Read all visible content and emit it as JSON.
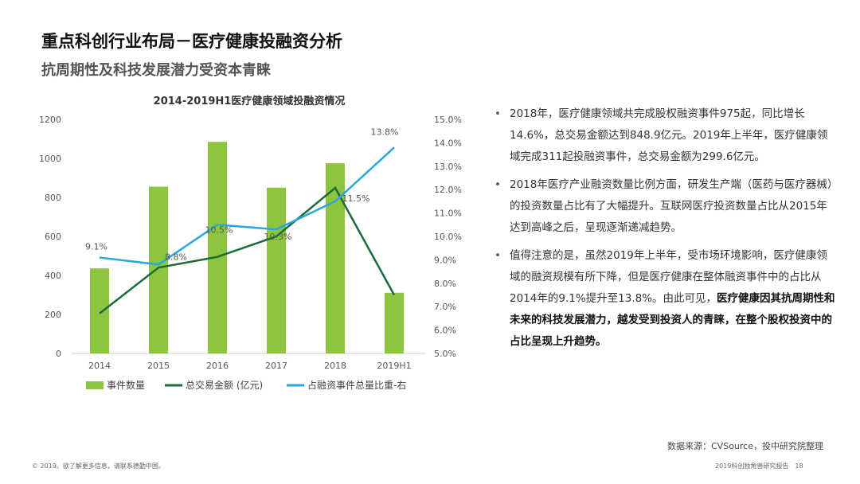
{
  "header": {
    "title": "重点科创行业布局－医疗健康投融资分析",
    "subtitle": "抗周期性及科技发展潜力受资本青睐"
  },
  "chart_data": {
    "type": "bar",
    "title": "2014-2019H1医疗健康领域投融资情况",
    "categories": [
      "2014",
      "2015",
      "2016",
      "2017",
      "2018",
      "2019H1"
    ],
    "ylim_left": [
      0,
      1200
    ],
    "yticks_left": [
      "0",
      "200",
      "400",
      "600",
      "800",
      "1000",
      "1200"
    ],
    "ylim_right": [
      5.0,
      15.0
    ],
    "yticks_right": [
      "5.0%",
      "6.0%",
      "7.0%",
      "8.0%",
      "9.0%",
      "10.0%",
      "11.0%",
      "12.0%",
      "13.0%",
      "14.0%",
      "15.0%"
    ],
    "series": [
      {
        "name": "事件数量",
        "kind": "bar",
        "axis": "left",
        "color": "#8cc63f",
        "values": [
          436,
          855,
          1085,
          850,
          975,
          311
        ]
      },
      {
        "name": "总交易金额 (亿元)",
        "kind": "line",
        "axis": "left",
        "color": "#1b6b3a",
        "values": [
          205,
          440,
          495,
          600,
          849,
          300
        ]
      },
      {
        "name": "占融资事件总量比重-右",
        "kind": "line",
        "axis": "right",
        "color": "#29a8e0",
        "values": [
          9.1,
          8.8,
          10.5,
          10.3,
          11.5,
          13.8
        ],
        "labels": [
          "9.1%",
          "8.8%",
          "10.5%",
          "10.3%",
          "11.5%",
          "13.8%"
        ]
      }
    ],
    "legend_position": "bottom",
    "grid": false
  },
  "bullets": [
    {
      "text": "2018年，医疗健康领域共完成股权融资事件975起，同比增长14.6%，总交易金额达到848.9亿元。2019年上半年，医疗健康领域完成311起投融资事件，总交易金额为299.6亿元。",
      "bold": ""
    },
    {
      "text": "2018年医疗产业融资数量比例方面，研发生产端（医药与医疗器械）的投资数量占比有了大幅提升。互联网医疗投资数量占比从2015年达到高峰之后，呈现逐渐递减趋势。",
      "bold": ""
    },
    {
      "text": "值得注意的是，虽然2019年上半年，受市场环境影响，医疗健康领域的融资规模有所下降，但是医疗健康在整体融资事件中的占比从2014年的9.1%提升至13.8%。由此可见，",
      "bold": "医疗健康因其抗周期性和未来的科技发展潜力，越发受到投资人的青睐，在整个股权投资中的占比呈现上升趋势。"
    }
  ],
  "bullet_marker": "•",
  "source": "数据来源：CVSource，投中研究院整理",
  "footer": {
    "left": "© 2019。欲了解更多信息，请联系德勤中国。",
    "right": "2019科创独角兽研究报告",
    "page": "18"
  }
}
